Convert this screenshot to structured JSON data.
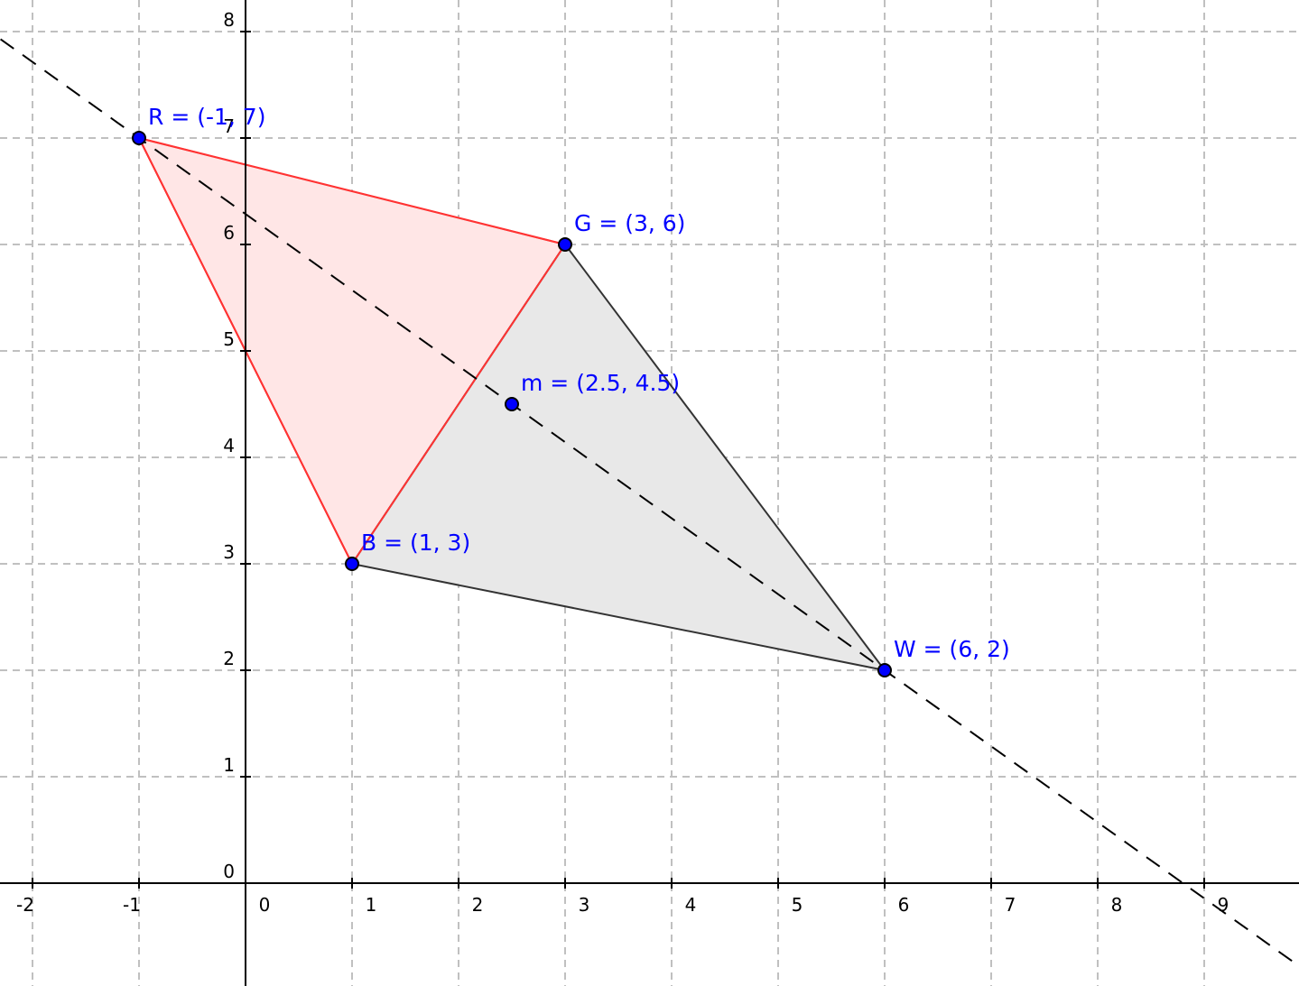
{
  "axes": {
    "x_ticks": [
      "-2",
      "-1",
      "0",
      "1",
      "2",
      "3",
      "4",
      "5",
      "6",
      "7",
      "8",
      "9"
    ],
    "y_ticks": [
      "0",
      "1",
      "2",
      "3",
      "4",
      "5",
      "6",
      "7",
      "8"
    ],
    "x_range": [
      -2.3,
      9.9
    ],
    "y_range": [
      -0.96,
      8.3
    ],
    "grid": true
  },
  "points": [
    {
      "name": "R",
      "x": -1,
      "y": 7,
      "label": "R = (-1, 7)"
    },
    {
      "name": "G",
      "x": 3,
      "y": 6,
      "label": "G = (3, 6)"
    },
    {
      "name": "m",
      "x": 2.5,
      "y": 4.5,
      "label": "m = (2.5, 4.5)"
    },
    {
      "name": "B",
      "x": 1,
      "y": 3,
      "label": "B = (1, 3)"
    },
    {
      "name": "W",
      "x": 6,
      "y": 2,
      "label": "W = (6, 2)"
    }
  ],
  "polygons": [
    {
      "name": "triangle-RGB",
      "vertices": [
        "R",
        "G",
        "B"
      ],
      "stroke": "#ff3333",
      "fill": "#ffe6e6"
    },
    {
      "name": "triangle-GWB",
      "vertices": [
        "G",
        "W",
        "B"
      ],
      "stroke": "#333333",
      "fill": "#e8e8e8"
    }
  ],
  "dashed_line": {
    "through": [
      "R",
      "W"
    ],
    "color": "#000000"
  },
  "colors": {
    "grid": "#c0c0c0",
    "axis": "#000000",
    "point_fill": "#0000ff",
    "label": "#0000ff"
  }
}
